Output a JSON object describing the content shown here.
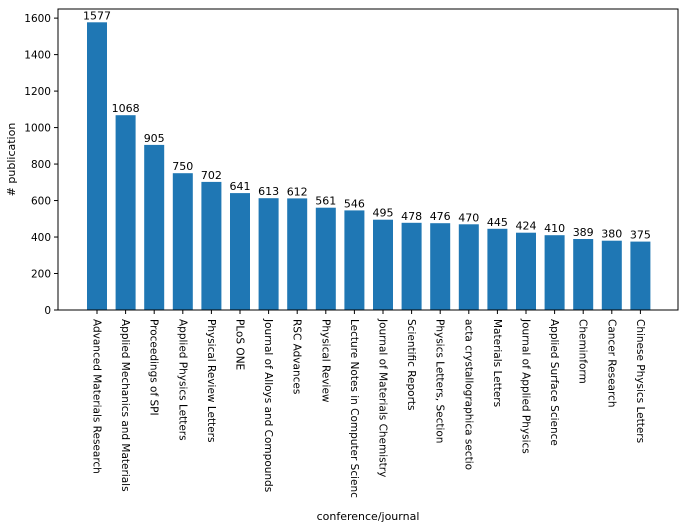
{
  "chart_data": {
    "type": "bar",
    "title": "",
    "xlabel": "conference/journal",
    "ylabel": "# publication",
    "ylim": [
      0,
      1650
    ],
    "yticks": [
      0,
      200,
      400,
      600,
      800,
      1000,
      1200,
      1400,
      1600
    ],
    "grid": false,
    "bar_color": "#1f77b4",
    "categories": [
      "Advanced Materials Research",
      "Applied Mechanics and Materials",
      "Proceedings of SPI",
      "Applied Physics Letters",
      "Physical Review Letters",
      "PLoS ONE",
      "Journal of Alloys and Compounds",
      "RSC Advances",
      "Physical Review",
      "Lecture Notes in Computer Scienc",
      "Journal of Materials Chemistry",
      "Scientific Reports",
      "Physics Letters, Section",
      "acta crystallographica sectio",
      "Materials Letters",
      "Journal of Applied Physics",
      "Applied Surface Science",
      "Cheminform",
      "Cancer Research",
      "Chinese Physics Letters"
    ],
    "values": [
      1577,
      1068,
      905,
      750,
      702,
      641,
      613,
      612,
      561,
      546,
      495,
      478,
      476,
      470,
      445,
      424,
      410,
      389,
      380,
      375
    ]
  }
}
